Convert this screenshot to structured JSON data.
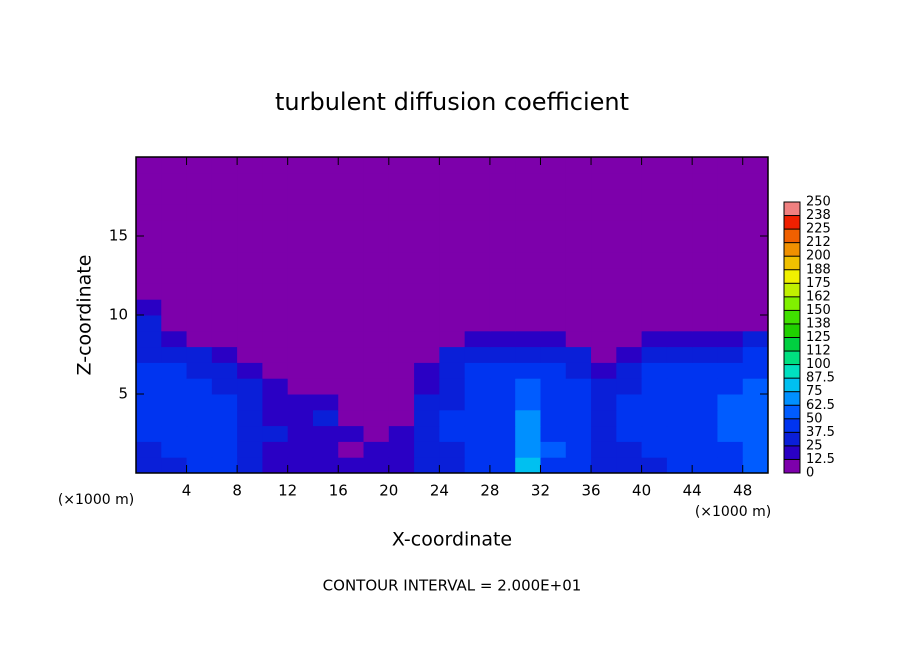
{
  "chart_data": {
    "type": "heatmap",
    "title": "turbulent diffusion coefficient",
    "xlabel": "X-coordinate",
    "ylabel": "Z-coordinate",
    "x_unit_labels": [
      "(×1000 m)",
      "(×1000 m)"
    ],
    "annotation": "CONTOUR INTERVAL = 2.000E+01",
    "xlim": [
      0,
      50
    ],
    "ylim": [
      0,
      20
    ],
    "xticks": [
      4,
      8,
      12,
      16,
      20,
      24,
      28,
      32,
      36,
      40,
      44,
      48
    ],
    "yticks": [
      5,
      10,
      15
    ],
    "x": [
      1,
      3,
      5,
      7,
      9,
      11,
      13,
      15,
      17,
      19,
      21,
      23,
      25,
      27,
      29,
      31,
      33,
      35,
      37,
      39,
      41,
      43,
      45,
      47,
      49
    ],
    "y": [
      0.5,
      1.5,
      2.5,
      3.5,
      4.5,
      5.5,
      6.5,
      7.5,
      8.5,
      9.5,
      10.5,
      11.5,
      12.5,
      13.5,
      14.5,
      15.5,
      16.5,
      17.5,
      18.5,
      19.5
    ],
    "z": [
      [
        30,
        35,
        40,
        40,
        30,
        20,
        15,
        15,
        15,
        20,
        20,
        30,
        35,
        40,
        45,
        75,
        45,
        40,
        35,
        30,
        30,
        40,
        40,
        45,
        60
      ],
      [
        35,
        40,
        40,
        40,
        35,
        20,
        15,
        15,
        10,
        15,
        20,
        30,
        35,
        40,
        45,
        70,
        50,
        40,
        35,
        35,
        40,
        40,
        45,
        45,
        60
      ],
      [
        40,
        40,
        40,
        40,
        35,
        25,
        20,
        20,
        15,
        10,
        15,
        35,
        40,
        40,
        40,
        70,
        45,
        40,
        35,
        40,
        40,
        40,
        45,
        50,
        55
      ],
      [
        40,
        40,
        40,
        40,
        35,
        20,
        20,
        25,
        10,
        10,
        10,
        30,
        40,
        40,
        40,
        65,
        40,
        45,
        35,
        40,
        40,
        40,
        45,
        50,
        55
      ],
      [
        40,
        45,
        40,
        40,
        30,
        20,
        15,
        15,
        10,
        5,
        5,
        25,
        35,
        40,
        40,
        60,
        45,
        40,
        30,
        40,
        40,
        45,
        45,
        50,
        50
      ],
      [
        40,
        40,
        40,
        35,
        30,
        15,
        10,
        10,
        5,
        5,
        5,
        20,
        35,
        40,
        40,
        55,
        45,
        40,
        25,
        35,
        40,
        45,
        45,
        45,
        50
      ],
      [
        40,
        40,
        35,
        30,
        20,
        10,
        5,
        5,
        5,
        5,
        5,
        15,
        35,
        40,
        40,
        45,
        40,
        35,
        20,
        30,
        40,
        40,
        40,
        45,
        45
      ],
      [
        35,
        35,
        25,
        20,
        10,
        5,
        5,
        5,
        5,
        5,
        5,
        5,
        25,
        35,
        35,
        35,
        35,
        25,
        10,
        20,
        30,
        35,
        30,
        35,
        40
      ],
      [
        30,
        20,
        10,
        5,
        5,
        5,
        5,
        5,
        5,
        5,
        5,
        5,
        5,
        15,
        20,
        20,
        15,
        10,
        5,
        5,
        15,
        20,
        15,
        20,
        25
      ],
      [
        25,
        10,
        5,
        5,
        5,
        5,
        5,
        5,
        5,
        5,
        5,
        5,
        5,
        5,
        5,
        5,
        5,
        5,
        5,
        5,
        5,
        5,
        5,
        5,
        10
      ],
      [
        15,
        5,
        5,
        5,
        5,
        5,
        5,
        5,
        5,
        5,
        5,
        5,
        5,
        5,
        5,
        5,
        5,
        5,
        5,
        5,
        5,
        5,
        5,
        5,
        5
      ],
      [
        0,
        0,
        0,
        0,
        0,
        0,
        0,
        0,
        0,
        0,
        0,
        0,
        0,
        0,
        0,
        0,
        0,
        0,
        0,
        0,
        0,
        0,
        0,
        0,
        0
      ],
      [
        0,
        0,
        0,
        0,
        0,
        0,
        0,
        0,
        0,
        0,
        0,
        0,
        0,
        0,
        0,
        0,
        0,
        0,
        0,
        0,
        0,
        0,
        0,
        0,
        0
      ],
      [
        0,
        0,
        0,
        0,
        0,
        0,
        0,
        0,
        0,
        0,
        0,
        0,
        0,
        0,
        0,
        0,
        0,
        0,
        0,
        0,
        0,
        0,
        0,
        0,
        0
      ],
      [
        0,
        0,
        0,
        0,
        0,
        0,
        0,
        0,
        0,
        0,
        0,
        0,
        0,
        0,
        0,
        0,
        0,
        0,
        0,
        0,
        0,
        0,
        0,
        0,
        0
      ],
      [
        0,
        0,
        0,
        0,
        0,
        0,
        0,
        0,
        0,
        0,
        0,
        0,
        0,
        0,
        0,
        0,
        0,
        0,
        0,
        0,
        0,
        0,
        0,
        0,
        0
      ],
      [
        0,
        0,
        0,
        0,
        0,
        0,
        0,
        0,
        0,
        0,
        0,
        0,
        0,
        0,
        0,
        0,
        0,
        0,
        0,
        0,
        0,
        0,
        0,
        0,
        0
      ],
      [
        0,
        0,
        0,
        0,
        0,
        0,
        0,
        0,
        0,
        0,
        0,
        0,
        0,
        0,
        0,
        0,
        0,
        0,
        0,
        0,
        0,
        0,
        0,
        0,
        0
      ],
      [
        0,
        0,
        0,
        0,
        0,
        0,
        0,
        0,
        0,
        0,
        0,
        0,
        0,
        0,
        0,
        0,
        0,
        0,
        0,
        0,
        0,
        0,
        0,
        0,
        0
      ],
      [
        0,
        0,
        0,
        0,
        0,
        0,
        0,
        0,
        0,
        0,
        0,
        0,
        0,
        0,
        0,
        0,
        0,
        0,
        0,
        0,
        0,
        0,
        0,
        0,
        0
      ]
    ],
    "levels": [
      0,
      12.5,
      25,
      37.5,
      50,
      62.5,
      75,
      87.5,
      100,
      {
        "value": 112.5,
        "label": "112"
      },
      125,
      {
        "value": 137.5,
        "label": "138"
      },
      150,
      {
        "value": 162.5,
        "label": "162"
      },
      175,
      {
        "value": 187.5,
        "label": "188"
      },
      200,
      {
        "value": 212.5,
        "label": "212"
      },
      225,
      {
        "value": 237.5,
        "label": "238"
      },
      250
    ],
    "colors": [
      "#7d00ab",
      "#2a00c4",
      "#0a1fd8",
      "#0034f0",
      "#005cff",
      "#0090ff",
      "#00c0f0",
      "#00e0c0",
      "#00e080",
      "#00d040",
      "#20d000",
      "#40e000",
      "#80f000",
      "#c0f000",
      "#f0f000",
      "#f0c000",
      "#f09000",
      "#f06000",
      "#f02000",
      "#f08080"
    ]
  }
}
